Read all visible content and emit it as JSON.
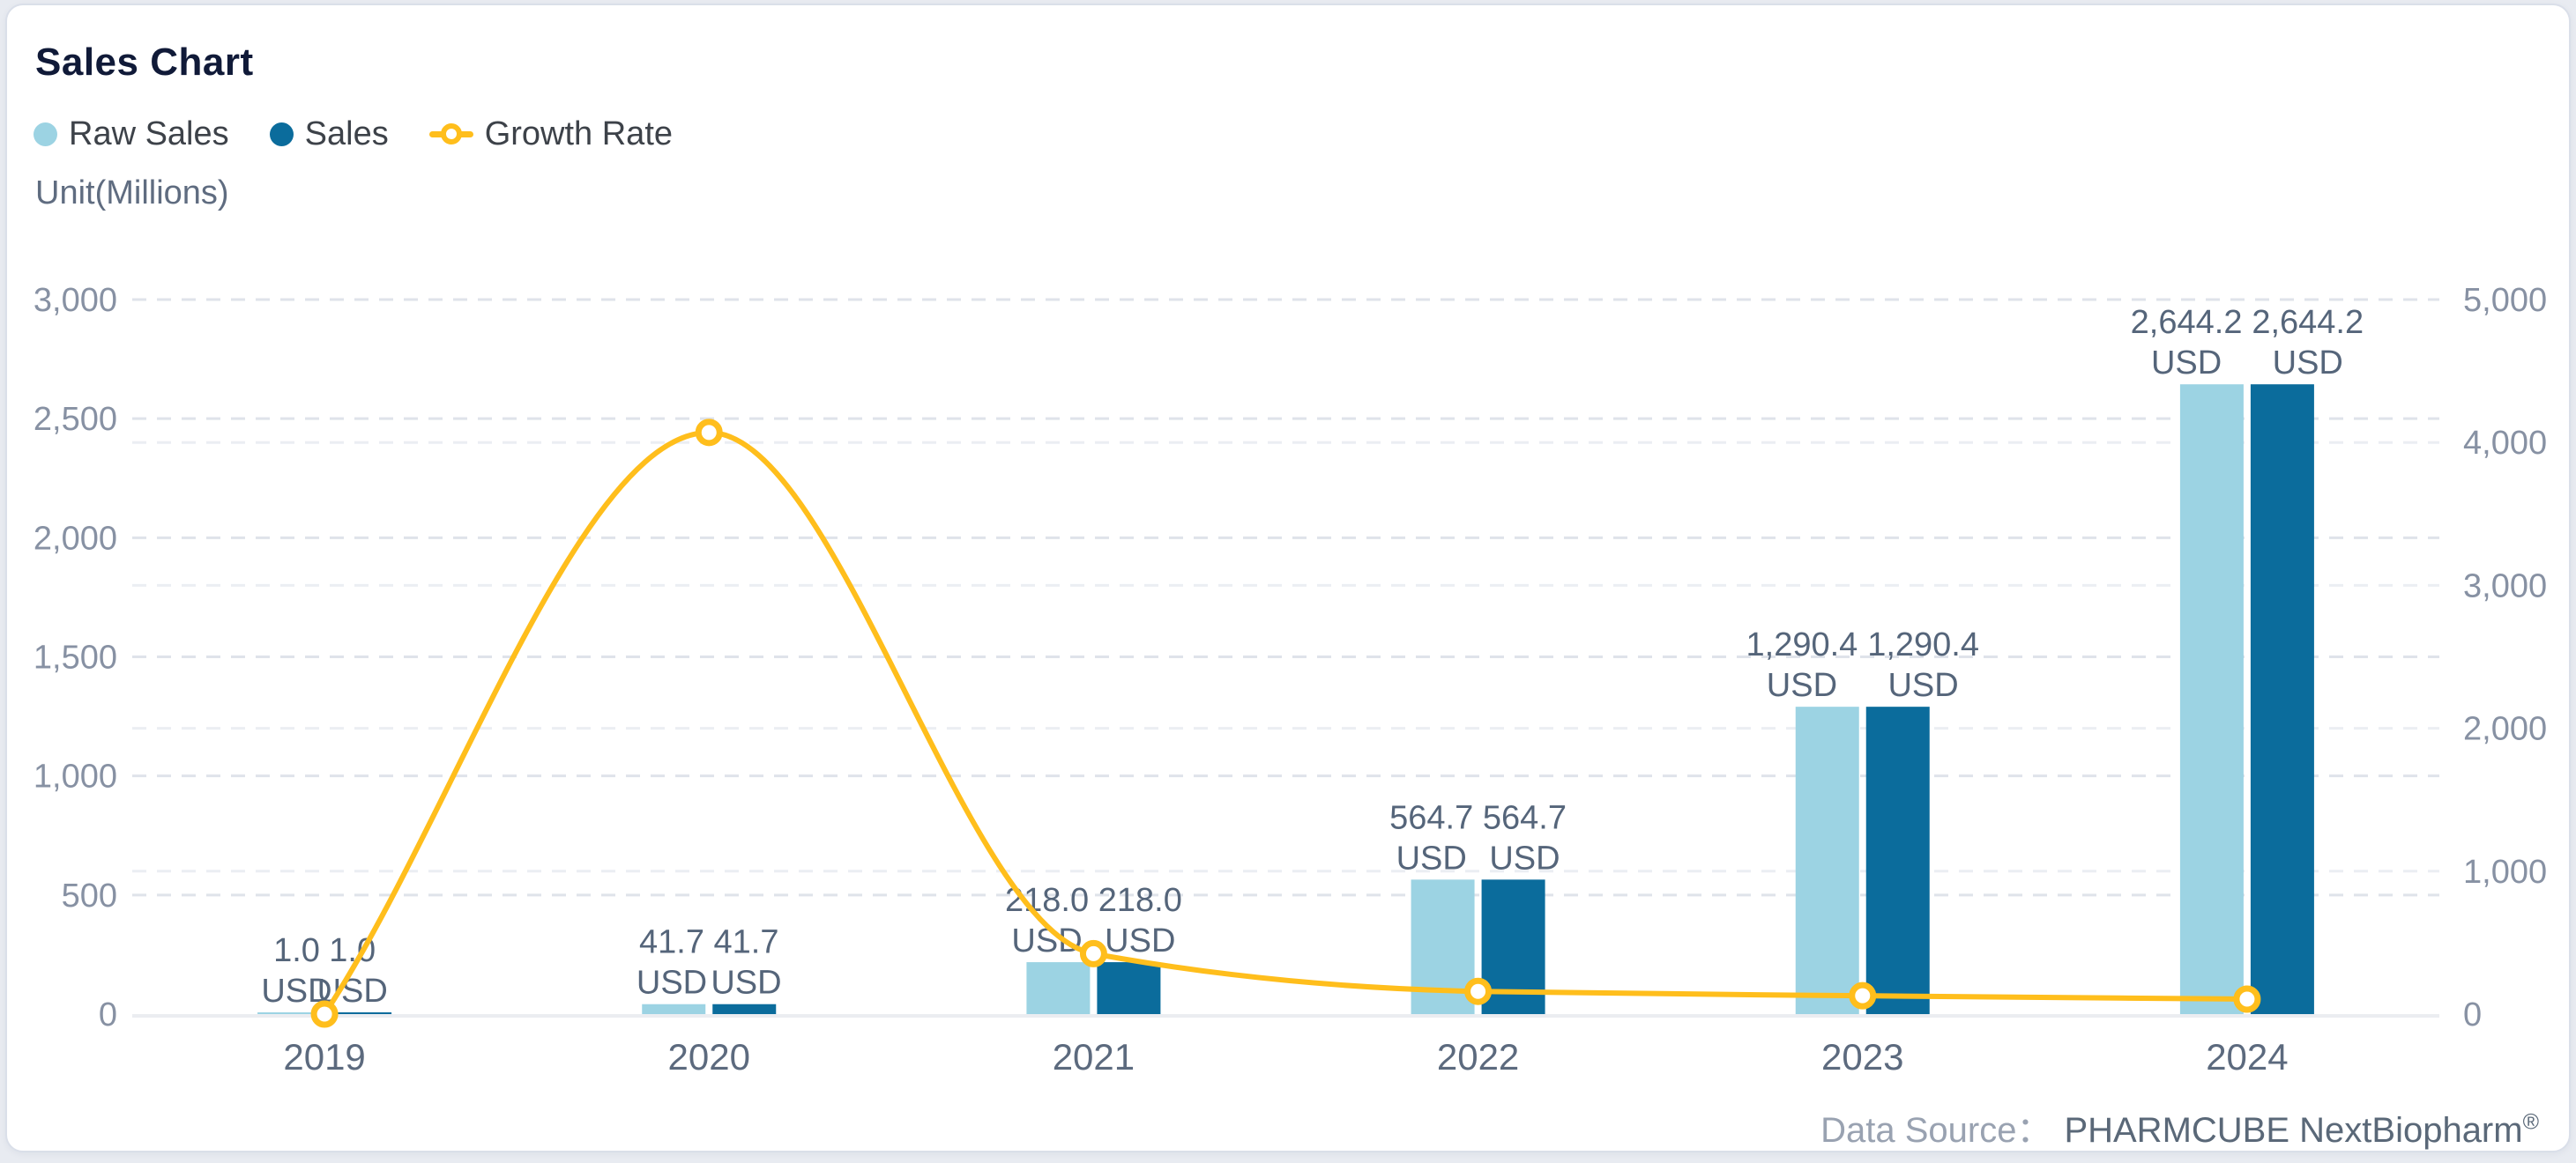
{
  "title": "Sales Chart",
  "unit_label": "Unit(Millions)",
  "legend": [
    {
      "label": "Raw Sales",
      "color": "#9CD3E3",
      "marker": "circle"
    },
    {
      "label": "Sales",
      "color": "#0B6C9C",
      "marker": "circle"
    },
    {
      "label": "Growth Rate",
      "color": "#FFBE1C",
      "marker": "line-ring"
    }
  ],
  "data_source": {
    "label": "Data Source：",
    "value": "PHARMCUBE NextBiopharm",
    "registered_mark": "®"
  },
  "chart_data": {
    "type": "bar",
    "categories": [
      "2019",
      "2020",
      "2021",
      "2022",
      "2023",
      "2024"
    ],
    "series": [
      {
        "name": "Raw Sales",
        "type": "bar",
        "axis": "left",
        "color": "#9CD3E3",
        "unit": "USD",
        "values": [
          1.0,
          41.7,
          218.0,
          564.7,
          1290.4,
          2644.2
        ],
        "value_labels": [
          "1.0",
          "41.7",
          "218.0",
          "564.7",
          "1,290.4",
          "2,644.2"
        ]
      },
      {
        "name": "Sales",
        "type": "bar",
        "axis": "left",
        "color": "#0B6C9C",
        "unit": "USD",
        "values": [
          1.0,
          41.7,
          218.0,
          564.7,
          1290.4,
          2644.2
        ],
        "value_labels": [
          "1.0",
          "41.7",
          "218.0",
          "564.7",
          "1,290.4",
          "2,644.2"
        ]
      },
      {
        "name": "Growth Rate",
        "type": "line",
        "axis": "right",
        "color": "#FFBE1C",
        "unit": "%",
        "values": [
          0,
          4070,
          422.8,
          159.0,
          128.5,
          104.9
        ]
      }
    ],
    "left_axis": {
      "min": 0,
      "max": 3000,
      "tick_step": 500,
      "tick_labels": [
        "0",
        "500",
        "1,000",
        "1,500",
        "2,000",
        "2,500",
        "3,000"
      ]
    },
    "right_axis": {
      "min": 0,
      "max": 5000,
      "tick_step": 1000,
      "tick_labels": [
        "0",
        "1,000",
        "2,000",
        "3,000",
        "4,000",
        "5,000"
      ]
    },
    "grid": "horizontal-dashed",
    "legend_position": "top-left"
  }
}
